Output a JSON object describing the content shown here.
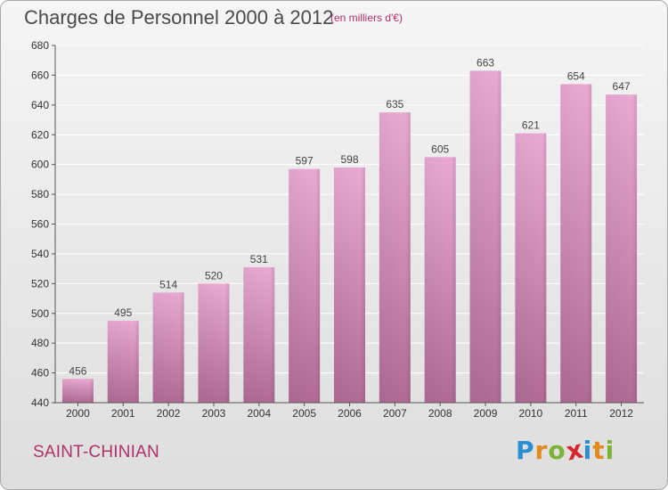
{
  "header": {
    "title": "Charges de Personnel 2000 à 2012",
    "subtitle": "(en milliers d'€)"
  },
  "footer": {
    "commune": "SAINT-CHINIAN",
    "logo": {
      "letters": [
        "P",
        "r",
        "o",
        "x",
        "i",
        "t",
        "i"
      ],
      "colors": [
        "#2a8fd0",
        "#e08a1e",
        "#7ab432",
        "#d9262e",
        "#2a8fd0",
        "#e08a1e",
        "#7ab432"
      ]
    }
  },
  "colors": {
    "bar_top": "#e9a9d3",
    "bar_bottom": "#b06b96",
    "grid": "#ffffff",
    "axis": "#555555"
  },
  "chart_data": {
    "type": "bar",
    "categories": [
      "2000",
      "2001",
      "2002",
      "2003",
      "2004",
      "2005",
      "2006",
      "2007",
      "2008",
      "2009",
      "2010",
      "2011",
      "2012"
    ],
    "values": [
      456,
      495,
      514,
      520,
      531,
      597,
      598,
      635,
      605,
      663,
      621,
      654,
      647
    ],
    "title": "Charges de Personnel 2000 à 2012",
    "subtitle": "(en milliers d'€)",
    "ylim": [
      440,
      680
    ],
    "yticks": [
      440,
      460,
      480,
      500,
      520,
      540,
      560,
      580,
      600,
      620,
      640,
      660,
      680
    ],
    "grid": true,
    "legend": "none"
  }
}
